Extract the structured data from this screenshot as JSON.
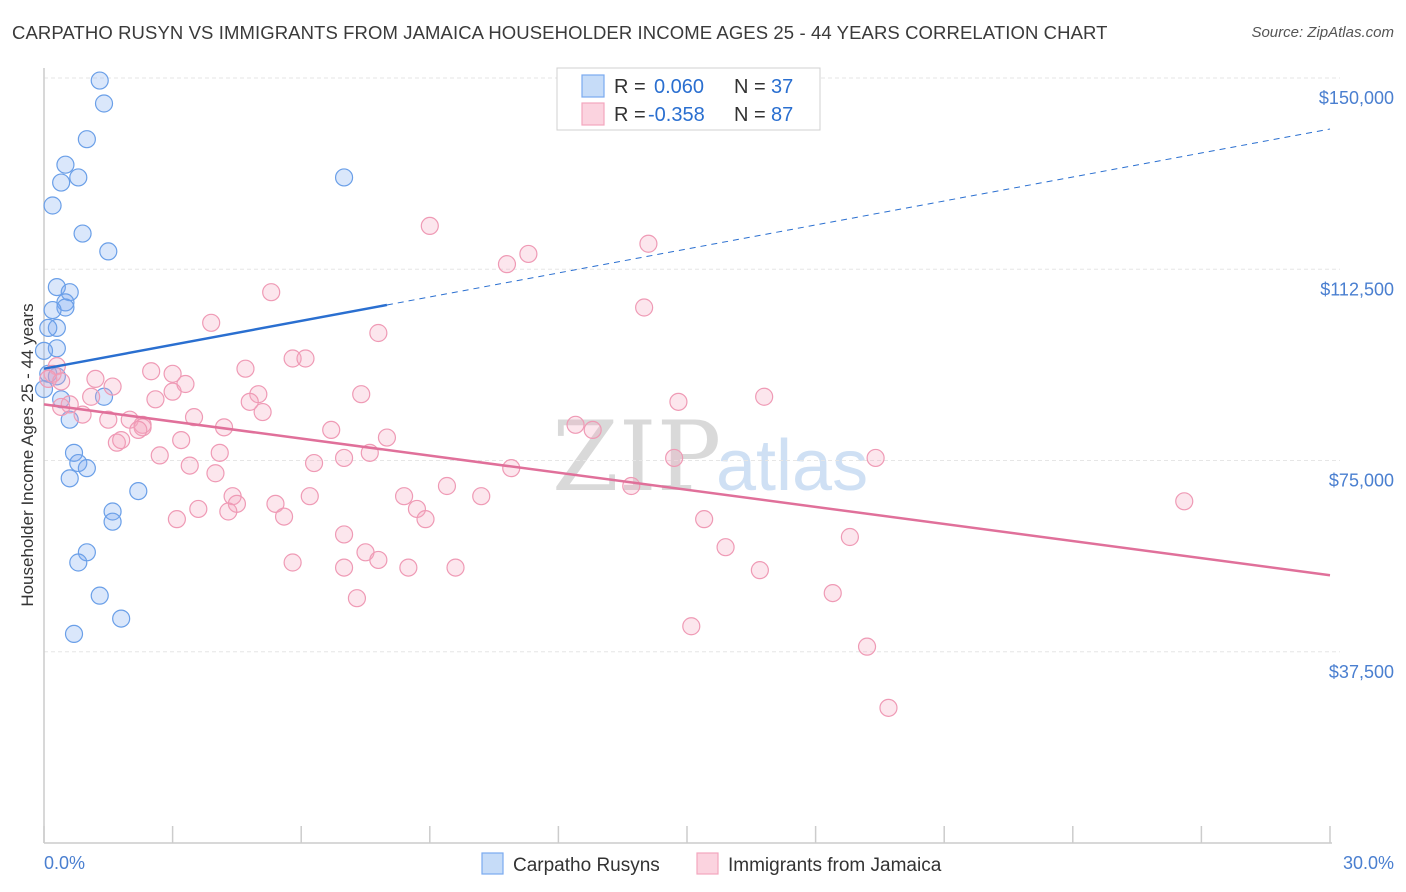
{
  "header": {
    "title": "CARPATHO RUSYN VS IMMIGRANTS FROM JAMAICA HOUSEHOLDER INCOME AGES 25 - 44 YEARS CORRELATION CHART",
    "source": "Source: ZipAtlas.com"
  },
  "watermark": {
    "zip": "ZIP",
    "atlas": "atlas"
  },
  "legend": {
    "rows": [
      {
        "r_label": "R =",
        "r_value": "0.060",
        "n_label": "N =",
        "n_value": "37"
      },
      {
        "r_label": "R =",
        "r_value": "-0.358",
        "n_label": "N =",
        "n_value": "87"
      }
    ]
  },
  "bottom_legend": {
    "items": [
      {
        "label": "Carpatho Rusyns"
      },
      {
        "label": "Immigrants from Jamaica"
      }
    ]
  },
  "chart_data": {
    "type": "scatter",
    "title": "CARPATHO RUSYN VS IMMIGRANTS FROM JAMAICA HOUSEHOLDER INCOME AGES 25 - 44 YEARS CORRELATION CHART",
    "ylabel": "Householder Income Ages 25 - 44 years",
    "xlabel": "",
    "xlim": [
      0,
      30
    ],
    "ylim": [
      0,
      160000
    ],
    "x_tick_labels": [
      "0.0%",
      "30.0%"
    ],
    "y_ticks": [
      37500,
      75000,
      112500,
      150000
    ],
    "y_tick_labels": [
      "$37,500",
      "$75,000",
      "$112,500",
      "$150,000"
    ],
    "grid": true,
    "legend_position": "top-center",
    "colors": {
      "Carpatho Rusyns": "#7aaaf0",
      "Immigrants from Jamaica": "#f4a6be",
      "trend_blue": "#2a6fd0",
      "trend_pink": "#e0709a"
    },
    "series": [
      {
        "name": "Carpatho Rusyns",
        "r": 0.06,
        "n": 37,
        "trend": {
          "x": [
            0,
            8
          ],
          "y": [
            93000,
            105500
          ],
          "dashed_extension_to_x": 30,
          "y_at_30": 140000
        },
        "points": [
          [
            1.3,
            149500
          ],
          [
            1.4,
            145000
          ],
          [
            1.0,
            138000
          ],
          [
            0.5,
            133000
          ],
          [
            0.8,
            130500
          ],
          [
            0.4,
            129500
          ],
          [
            7.0,
            130500
          ],
          [
            0.2,
            125000
          ],
          [
            0.9,
            119500
          ],
          [
            1.5,
            116000
          ],
          [
            0.3,
            109000
          ],
          [
            0.6,
            108000
          ],
          [
            0.5,
            106000
          ],
          [
            0.5,
            105000
          ],
          [
            0.2,
            104500
          ],
          [
            0.3,
            101000
          ],
          [
            0.1,
            101000
          ],
          [
            0.3,
            97000
          ],
          [
            0.0,
            96500
          ],
          [
            0.1,
            92000
          ],
          [
            0.3,
            91500
          ],
          [
            0.0,
            89000
          ],
          [
            0.4,
            87000
          ],
          [
            1.4,
            87500
          ],
          [
            0.6,
            83000
          ],
          [
            0.7,
            76500
          ],
          [
            0.8,
            74500
          ],
          [
            1.0,
            73500
          ],
          [
            0.6,
            71500
          ],
          [
            2.2,
            69000
          ],
          [
            1.6,
            65000
          ],
          [
            1.6,
            63000
          ],
          [
            1.0,
            57000
          ],
          [
            0.8,
            55000
          ],
          [
            1.3,
            48500
          ],
          [
            1.8,
            44000
          ],
          [
            0.7,
            41000
          ]
        ]
      },
      {
        "name": "Immigrants from Jamaica",
        "r": -0.358,
        "n": 87,
        "trend": {
          "x": [
            0,
            30
          ],
          "y": [
            86000,
            52500
          ]
        },
        "points": [
          [
            9.0,
            121000
          ],
          [
            14.1,
            117500
          ],
          [
            10.8,
            113500
          ],
          [
            11.3,
            115500
          ],
          [
            5.3,
            108000
          ],
          [
            14.0,
            105000
          ],
          [
            3.9,
            102000
          ],
          [
            7.8,
            100000
          ],
          [
            5.8,
            95000
          ],
          [
            6.1,
            95000
          ],
          [
            4.7,
            93000
          ],
          [
            0.3,
            93500
          ],
          [
            0.2,
            92000
          ],
          [
            0.1,
            91000
          ],
          [
            0.4,
            90500
          ],
          [
            1.2,
            91000
          ],
          [
            2.5,
            92500
          ],
          [
            3.0,
            92000
          ],
          [
            1.6,
            89500
          ],
          [
            3.0,
            88500
          ],
          [
            5.0,
            88000
          ],
          [
            7.4,
            88000
          ],
          [
            2.6,
            87000
          ],
          [
            1.1,
            87500
          ],
          [
            4.8,
            86500
          ],
          [
            0.6,
            86000
          ],
          [
            0.4,
            85500
          ],
          [
            5.1,
            84500
          ],
          [
            0.9,
            84000
          ],
          [
            1.5,
            83000
          ],
          [
            3.5,
            83500
          ],
          [
            2.0,
            83000
          ],
          [
            2.3,
            82000
          ],
          [
            4.2,
            81500
          ],
          [
            2.3,
            81500
          ],
          [
            2.2,
            81000
          ],
          [
            6.7,
            81000
          ],
          [
            8.0,
            79500
          ],
          [
            12.4,
            82000
          ],
          [
            12.8,
            81000
          ],
          [
            14.8,
            86500
          ],
          [
            16.8,
            87500
          ],
          [
            3.2,
            79000
          ],
          [
            1.7,
            78500
          ],
          [
            4.1,
            76500
          ],
          [
            2.7,
            76000
          ],
          [
            7.0,
            75500
          ],
          [
            7.6,
            76500
          ],
          [
            6.3,
            74500
          ],
          [
            3.4,
            74000
          ],
          [
            10.9,
            73500
          ],
          [
            14.7,
            75500
          ],
          [
            19.4,
            75500
          ],
          [
            4.0,
            72500
          ],
          [
            9.4,
            70000
          ],
          [
            13.7,
            70000
          ],
          [
            4.4,
            68000
          ],
          [
            6.2,
            68000
          ],
          [
            8.4,
            68000
          ],
          [
            10.2,
            68000
          ],
          [
            4.5,
            66500
          ],
          [
            5.4,
            66500
          ],
          [
            3.6,
            65500
          ],
          [
            8.7,
            65500
          ],
          [
            4.3,
            65000
          ],
          [
            3.1,
            63500
          ],
          [
            5.6,
            64000
          ],
          [
            8.9,
            63500
          ],
          [
            15.4,
            63500
          ],
          [
            26.6,
            67000
          ],
          [
            7.0,
            60500
          ],
          [
            18.8,
            60000
          ],
          [
            7.5,
            57000
          ],
          [
            15.9,
            58000
          ],
          [
            5.8,
            55000
          ],
          [
            7.8,
            55500
          ],
          [
            7.0,
            54000
          ],
          [
            8.5,
            54000
          ],
          [
            9.6,
            54000
          ],
          [
            16.7,
            53500
          ],
          [
            18.4,
            49000
          ],
          [
            7.3,
            48000
          ],
          [
            15.1,
            42500
          ],
          [
            19.2,
            38500
          ],
          [
            19.7,
            26500
          ],
          [
            1.8,
            79000
          ],
          [
            3.3,
            90000
          ]
        ]
      }
    ]
  }
}
